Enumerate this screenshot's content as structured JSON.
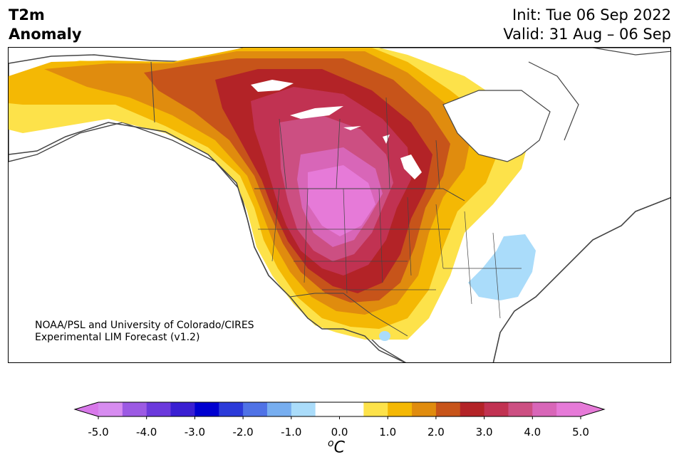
{
  "header": {
    "title_line1": "T2m",
    "title_line2": "Anomaly",
    "init": "Init: Tue 06 Sep 2022",
    "valid": "Valid: 31 Aug – 06 Sep"
  },
  "map": {
    "credit_line1": "NOAA/PSL and University of Colorado/CIRES",
    "credit_line2": "Experimental LIM Forecast (v1.2)",
    "region": "North America",
    "warm_core_region": "Northwest US / Northern Rockies",
    "cool_region": "Southeast US",
    "colors": {
      "land_outline": "#444444",
      "lake_fill": "#ffffff"
    }
  },
  "colorbar": {
    "unit": "C",
    "unit_sup": "o",
    "colors": [
      "#d78cf0",
      "#9c5ae3",
      "#6b39dc",
      "#3a1fd2",
      "#0000d0",
      "#2b3ad9",
      "#4f72e6",
      "#77aef0",
      "#aadcfa",
      "#ffffff",
      "#ffffff",
      "#fde24a",
      "#f4b804",
      "#e08c0e",
      "#c7541a",
      "#b32327",
      "#c13252",
      "#cc4f82",
      "#d866b8",
      "#e67ad8"
    ],
    "extend_min_color": "#d878ea",
    "extend_max_color": "#e67ad8",
    "tick_labels": [
      "-5.0",
      "-4.0",
      "-3.0",
      "-2.0",
      "-1.0",
      "0.0",
      "1.0",
      "2.0",
      "3.0",
      "4.0",
      "5.0"
    ],
    "tick_values": [
      -5,
      -4,
      -3,
      -2,
      -1,
      0,
      1,
      2,
      3,
      4,
      5
    ],
    "range": [
      -5,
      5
    ]
  }
}
